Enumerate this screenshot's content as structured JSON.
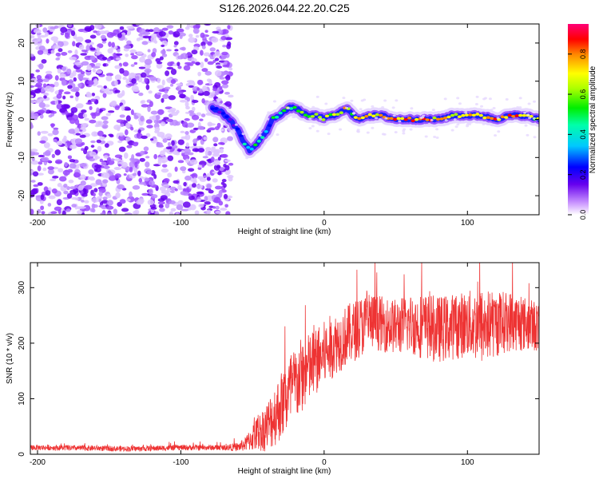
{
  "title": "S126.2026.044.22.20.C25",
  "chart_data": [
    {
      "type": "heatmap",
      "xlabel": "Height of straight line (km)",
      "ylabel": "Frequency (Hz)",
      "xlim": [
        -205,
        150
      ],
      "ylim": [
        -25,
        25
      ],
      "xticks": [
        -200,
        -100,
        0,
        100
      ],
      "xtick_labels": [
        "-200",
        "-100",
        "0",
        "100"
      ],
      "yticks": [
        -20,
        -10,
        0,
        10,
        20
      ],
      "ytick_labels": [
        "-20",
        "-10",
        "0",
        "10",
        "20"
      ],
      "noise_region_x": [
        -205,
        -65
      ],
      "ridge": {
        "x": [
          -78,
          -72,
          -66,
          -60,
          -56,
          -52,
          -48,
          -44,
          -40,
          -36,
          -32,
          -28,
          -24,
          -20,
          -16,
          -12,
          -8,
          -4,
          0,
          4,
          8,
          12,
          16,
          20,
          24,
          30,
          40,
          50,
          60,
          70,
          80,
          90,
          100,
          110,
          120,
          130,
          140,
          150
        ],
        "frequency": [
          3,
          2,
          0,
          -3,
          -6,
          -8,
          -7,
          -5,
          -3,
          0,
          1,
          2,
          3,
          3,
          2,
          1,
          1,
          1,
          0,
          1,
          1,
          2,
          3,
          1,
          0,
          1,
          1,
          0,
          0,
          0,
          0,
          1,
          1,
          1,
          0,
          1,
          1,
          0
        ],
        "amplitude": [
          0.25,
          0.3,
          0.3,
          0.35,
          0.4,
          0.35,
          0.45,
          0.45,
          0.4,
          0.5,
          0.55,
          0.6,
          0.6,
          0.55,
          0.6,
          0.65,
          0.7,
          0.65,
          0.75,
          0.7,
          0.8,
          0.75,
          0.85,
          0.7,
          0.85,
          0.8,
          0.85,
          0.9,
          0.85,
          0.9,
          0.8,
          0.75,
          0.8,
          0.8,
          0.85,
          0.9,
          0.8,
          0.7
        ]
      },
      "colorbar": {
        "label": "Normalized spectral amplitude",
        "range": [
          0,
          0.95
        ],
        "ticks": [
          0.0,
          0.2,
          0.4,
          0.6,
          0.8
        ],
        "tick_labels": [
          "0.0",
          "0.2",
          "0.4",
          "0.6",
          "0.8"
        ],
        "colormap": "rainbow"
      }
    },
    {
      "type": "line",
      "xlabel": "Height of straight line (km)",
      "ylabel": "SNR (10 * v/v)",
      "xlim": [
        -205,
        150
      ],
      "ylim": [
        0,
        345
      ],
      "xticks": [
        -200,
        -100,
        0,
        100
      ],
      "xtick_labels": [
        "-200",
        "-100",
        "0",
        "100"
      ],
      "yticks": [
        0,
        100,
        200,
        300
      ],
      "ytick_labels": [
        "0",
        "100",
        "200",
        "300"
      ],
      "line_color": "#ee3333",
      "series": [
        {
          "x": [
            -205,
            -190,
            -175,
            -160,
            -145,
            -130,
            -115,
            -100,
            -85,
            -70,
            -60,
            -55,
            -50,
            -45,
            -40,
            -36,
            -32,
            -28,
            -24,
            -20,
            -16,
            -12,
            -8,
            -4,
            0,
            4,
            8,
            12,
            16,
            20,
            25,
            30,
            35,
            40,
            50,
            60,
            70,
            80,
            90,
            100,
            110,
            120,
            130,
            140,
            150
          ],
          "values": [
            12,
            12,
            11,
            11,
            10,
            10,
            11,
            12,
            12,
            12,
            13,
            18,
            30,
            40,
            50,
            65,
            80,
            95,
            110,
            125,
            140,
            150,
            160,
            170,
            180,
            190,
            200,
            205,
            215,
            220,
            230,
            235,
            240,
            235,
            230,
            235,
            230,
            225,
            230,
            235,
            230,
            235,
            240,
            235,
            230
          ],
          "amplitude": [
            5,
            5,
            5,
            5,
            5,
            5,
            5,
            5,
            5,
            5,
            8,
            12,
            25,
            35,
            45,
            55,
            60,
            65,
            70,
            70,
            70,
            65,
            65,
            60,
            60,
            60,
            55,
            55,
            55,
            55,
            55,
            55,
            50,
            50,
            50,
            55,
            60,
            60,
            60,
            60,
            70,
            60,
            55,
            50,
            45
          ]
        }
      ]
    }
  ]
}
